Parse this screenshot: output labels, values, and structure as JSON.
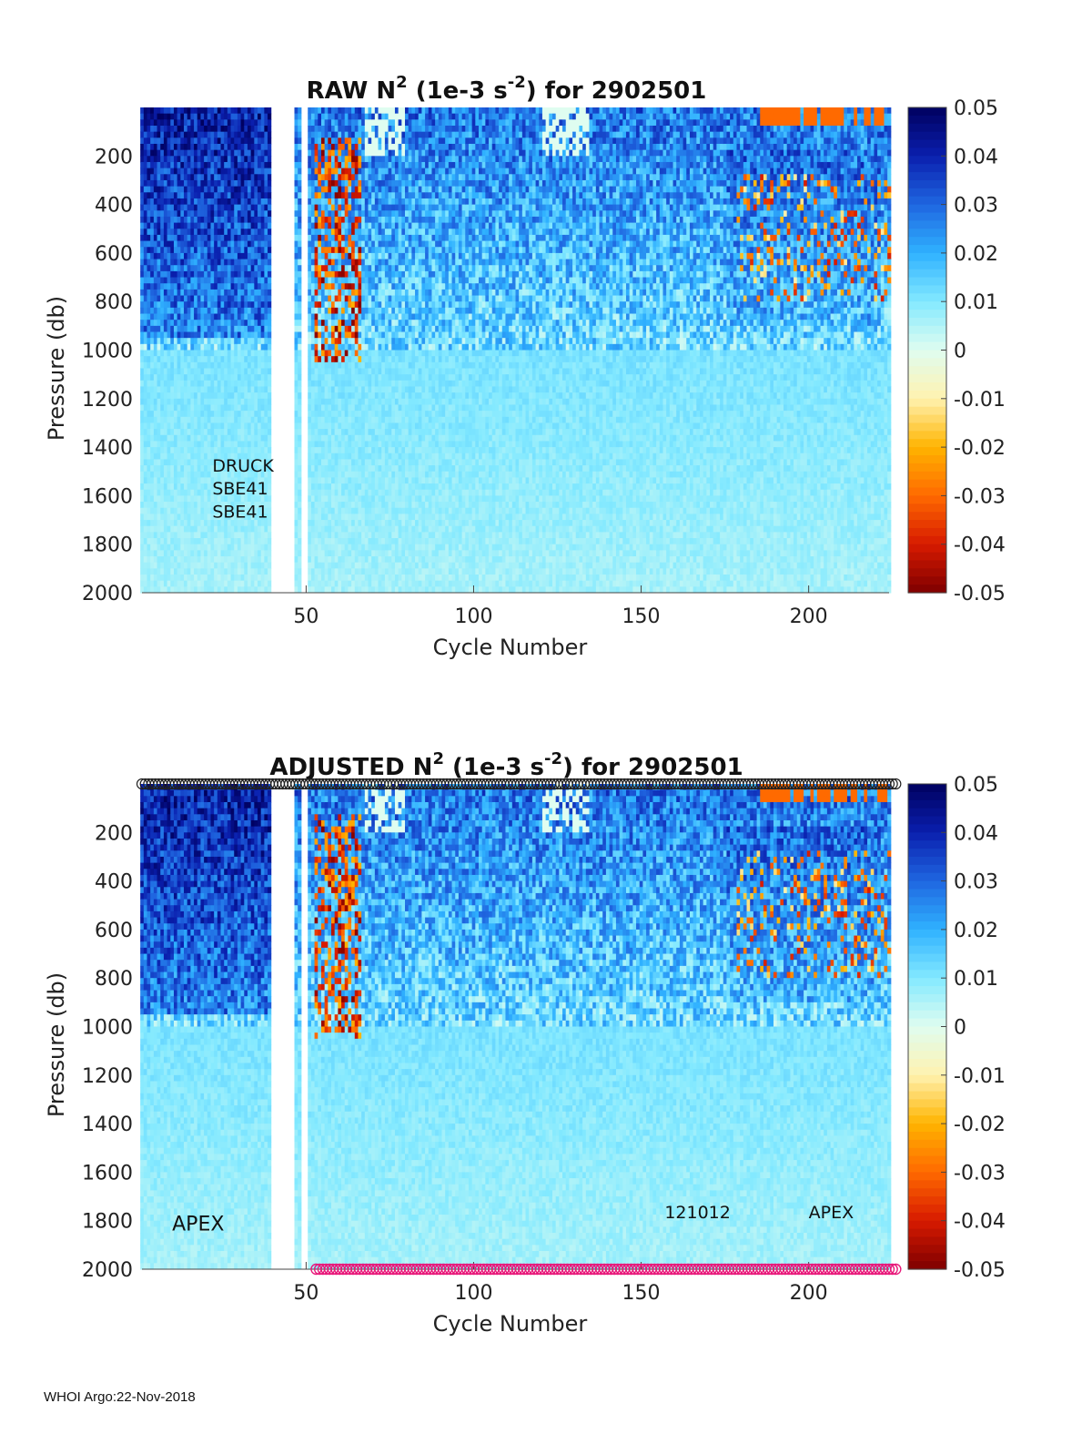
{
  "footer": "WHOI Argo:22-Nov-2018",
  "colors": {
    "colormap": [
      "#7f0000",
      "#d71a00",
      "#ff6a00",
      "#ffb400",
      "#fff2b0",
      "#dffdf0",
      "#83e9ff",
      "#2fb1ff",
      "#1f66e0",
      "#0a1fae",
      "#00005f"
    ],
    "flag_top": "#222222",
    "flag_bottom": "#e8197a"
  },
  "chart_data": [
    {
      "type": "heatmap",
      "title": "RAW N² (1e-3 s⁻²) for 2902501",
      "title_parts": {
        "a": "RAW N",
        "sup1": "2",
        "b": " (1e-3 s",
        "sup2": "-2",
        "c": ") for 2902501"
      },
      "xlabel": "Cycle Number",
      "ylabel": "Pressure (db)",
      "xlim": [
        1,
        224
      ],
      "ylim": [
        2000,
        0
      ],
      "x_ticks": [
        50,
        100,
        150,
        200
      ],
      "y_ticks": [
        200,
        400,
        600,
        800,
        1000,
        1200,
        1400,
        1600,
        1800,
        2000
      ],
      "colorbar": {
        "clim": [
          -0.05,
          0.05
        ],
        "ticks": [
          "0.05",
          "0.04",
          "0.03",
          "0.02",
          "0.01",
          "0",
          "-0.01",
          "-0.02",
          "-0.03",
          "-0.04",
          "-0.05"
        ]
      },
      "gaps": [
        [
          40,
          46
        ],
        [
          49,
          50
        ]
      ],
      "annotations": [
        {
          "text": "DRUCK",
          "x": 22,
          "y": 1500
        },
        {
          "text": "SBE41",
          "x": 22,
          "y": 1595
        },
        {
          "text": "SBE41",
          "x": 22,
          "y": 1690
        }
      ],
      "flags": null
    },
    {
      "type": "heatmap",
      "title": "ADJUSTED N² (1e-3 s⁻²) for 2902501",
      "title_parts": {
        "a": "ADJUSTED N",
        "sup1": "2",
        "b": " (1e-3 s",
        "sup2": "-2",
        "c": ") for 2902501"
      },
      "xlabel": "Cycle Number",
      "ylabel": "Pressure (db)",
      "xlim": [
        1,
        224
      ],
      "ylim": [
        2000,
        0
      ],
      "x_ticks": [
        50,
        100,
        150,
        200
      ],
      "y_ticks": [
        200,
        400,
        600,
        800,
        1000,
        1200,
        1400,
        1600,
        1800,
        2000
      ],
      "colorbar": {
        "clim": [
          -0.05,
          0.05
        ],
        "ticks": [
          "0.05",
          "0.04",
          "0.03",
          "0.02",
          "0.01",
          "0",
          "-0.01",
          "-0.02",
          "-0.03",
          "-0.04",
          "-0.05"
        ]
      },
      "gaps": [
        [
          40,
          46
        ],
        [
          49,
          50
        ]
      ],
      "annotations": [
        {
          "text": "APEX",
          "x": 10,
          "y": 1840
        },
        {
          "text": "121012",
          "x": 157,
          "y": 1790
        },
        {
          "text": "APEX",
          "x": 200,
          "y": 1790
        }
      ],
      "flags": {
        "top_cycles": [
          1,
          226
        ],
        "bottom_cycles": [
          53,
          226
        ]
      }
    }
  ]
}
